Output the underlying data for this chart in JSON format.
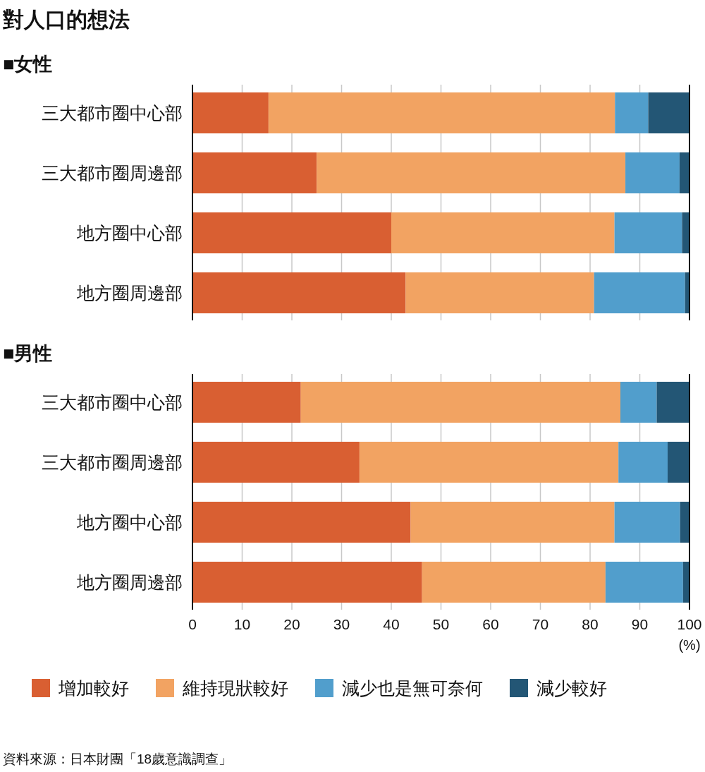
{
  "chart_data": [
    {
      "type": "bar",
      "orientation": "horizontal",
      "stacked": true,
      "title": "對人口的想法",
      "subtitle": "■女性",
      "categories": [
        "三大都市圈中心部",
        "三大都市圈周邊部",
        "地方圈中心部",
        "地方圈周邊部"
      ],
      "series": [
        {
          "color": "#d95f32",
          "values": [
            15.3,
            25.0,
            40.0,
            42.9
          ]
        },
        {
          "color": "#f2a362",
          "values": [
            69.7,
            62.1,
            44.9,
            37.9
          ]
        },
        {
          "color": "#519ecc",
          "values": [
            6.7,
            10.9,
            13.6,
            18.3
          ]
        },
        {
          "color": "#235675",
          "values": [
            8.3,
            2.0,
            1.5,
            0.9
          ]
        }
      ],
      "xlim": [
        0,
        100
      ],
      "xticks": [
        0,
        10,
        20,
        30,
        40,
        50,
        60,
        70,
        80,
        90,
        100
      ],
      "grid": "x",
      "tick_labels": "y",
      "legend": false
    },
    {
      "type": "bar",
      "orientation": "horizontal",
      "stacked": true,
      "subtitle": "■男性",
      "xlabel": "(%)",
      "categories": [
        "三大都市圈中心部",
        "三大都市圈周邊部",
        "地方圈中心部",
        "地方圈周邊部"
      ],
      "series": [
        {
          "name": "增加較好",
          "color": "#d95f32",
          "values": [
            21.8,
            33.6,
            43.9,
            46.2
          ]
        },
        {
          "name": "維持現狀較好",
          "color": "#f2a362",
          "values": [
            64.3,
            52.1,
            41.0,
            36.9
          ]
        },
        {
          "name": "減少也是無可奈何",
          "color": "#519ecc",
          "values": [
            7.3,
            9.9,
            13.2,
            15.6
          ]
        },
        {
          "name": "減少較好",
          "color": "#235675",
          "values": [
            6.6,
            4.4,
            1.9,
            1.3
          ]
        }
      ],
      "xlim": [
        0,
        100
      ],
      "xticks": [
        0,
        10,
        20,
        30,
        40,
        50,
        60,
        70,
        80,
        90,
        100
      ],
      "grid": "x",
      "legend": "bottom",
      "annotations": [
        "資料來源：日本財團「18歲意識調查」"
      ]
    }
  ]
}
